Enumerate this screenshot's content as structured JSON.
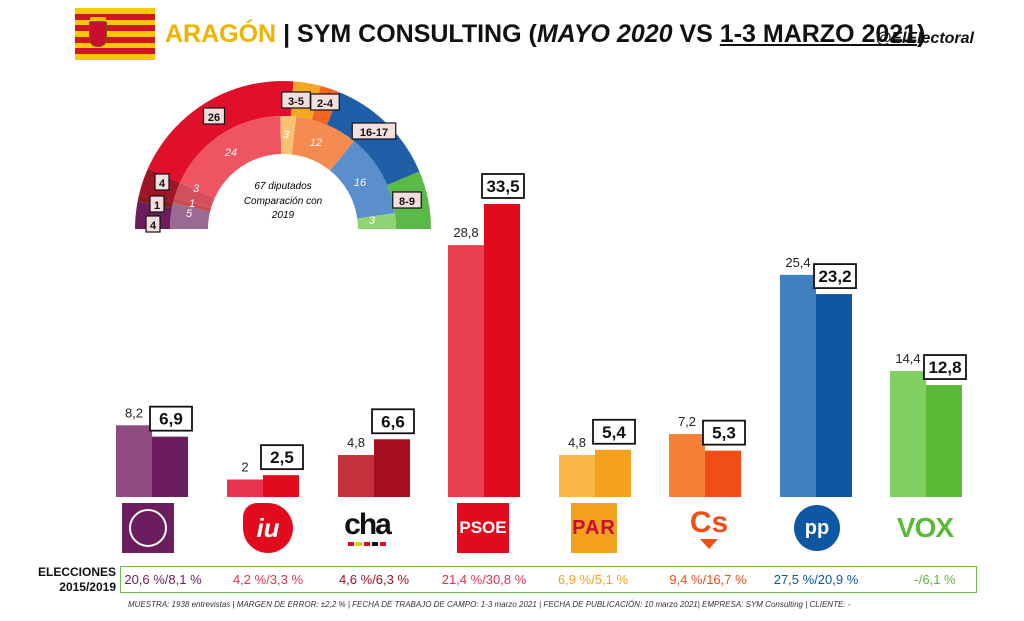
{
  "header": {
    "region": "ARAGÓN",
    "separator": "|",
    "pollster": "SYM CONSULTING (",
    "previous_date": "MAYO 2020",
    "vs": " VS ",
    "current_date": "1-3 MARZO 2021",
    "close": ")",
    "handle": "@ElElectoral"
  },
  "seat_arc": {
    "center_text": [
      "67 diputados",
      "Comparación con",
      "2019"
    ],
    "outer_labels": [
      "4",
      "1",
      "4",
      "26",
      "3-5",
      "2-4",
      "16-17",
      "8-9"
    ],
    "inner_labels": [
      "5",
      "1",
      "3",
      "24",
      "3",
      "12",
      "16",
      "3"
    ],
    "colors": {
      "podemos": "#6b1d5e",
      "iu": "#8b1a1a",
      "cha": "#a01525",
      "psoe": "#e0102a",
      "par": "#f5a623",
      "cs": "#f26522",
      "pp": "#1f5fa8",
      "vox": "#5ab947"
    }
  },
  "chart_data": {
    "type": "bar",
    "categories": [
      "Podemos",
      "IU",
      "CHA",
      "PSOE",
      "PAR",
      "Cs",
      "PP",
      "VOX"
    ],
    "series": [
      {
        "values": [
          8.2,
          2,
          4.8,
          28.8,
          4.8,
          7.2,
          25.4,
          14.4
        ]
      },
      {
        "values": [
          6.9,
          2.5,
          6.6,
          33.5,
          5.4,
          5.3,
          23.2,
          12.8
        ]
      }
    ],
    "prev_labels": [
      "8,2",
      "2",
      "4,8",
      "28,8",
      "4,8",
      "7,2",
      "25,4",
      "14,4"
    ],
    "curr_labels": [
      "6,9",
      "2,5",
      "6,6",
      "33,5",
      "5,4",
      "5,3",
      "23,2",
      "12,8"
    ],
    "prev_colors": [
      "#8e4c83",
      "#e8334f",
      "#c4323e",
      "#e8404e",
      "#f9b746",
      "#f58033",
      "#4181c2",
      "#7fcf61"
    ],
    "curr_colors": [
      "#6b1d5e",
      "#e20a1d",
      "#a50e1f",
      "#e20a1d",
      "#f5a01e",
      "#f04e16",
      "#0d57a3",
      "#5ab935"
    ],
    "ylim": [
      0,
      35
    ],
    "grid": false
  },
  "logos": {
    "podemos": "podemos-logo",
    "iu": "iu-logo",
    "cha_text": "cha",
    "psoe_text": "PSOE",
    "par_text": "PAR",
    "cs_text": "Cs",
    "pp_text": "pp",
    "vox_text": "VOX"
  },
  "elections": {
    "label_line1": "ELECCIONES",
    "label_line2": "2015/2019",
    "values": [
      "20,6 %/8,1 %",
      "4,2 %/3,3 %",
      "4,6 %/6,3 %",
      "21,4 %/30,8 %",
      "6,9 %/5,1 %",
      "9,4 %/16,7 %",
      "27,5 %/20,9 %",
      "-/6,1 %"
    ],
    "colors": [
      "#6b1d5e",
      "#e2334f",
      "#a50e1f",
      "#e2334f",
      "#f5a01e",
      "#f04e16",
      "#0d57a3",
      "#5ab935"
    ]
  },
  "footer": "MUESTRA: 1938 entrevistas | MARGEN DE ERROR: ±2,2 % | FECHA DE TRABAJO DE CAMPO: 1-3 marzo 2021 | FECHA DE PUBLICACIÓN: 10 marzo 2021| EMPRESA: SYM Consulting | CLIENTE: -"
}
